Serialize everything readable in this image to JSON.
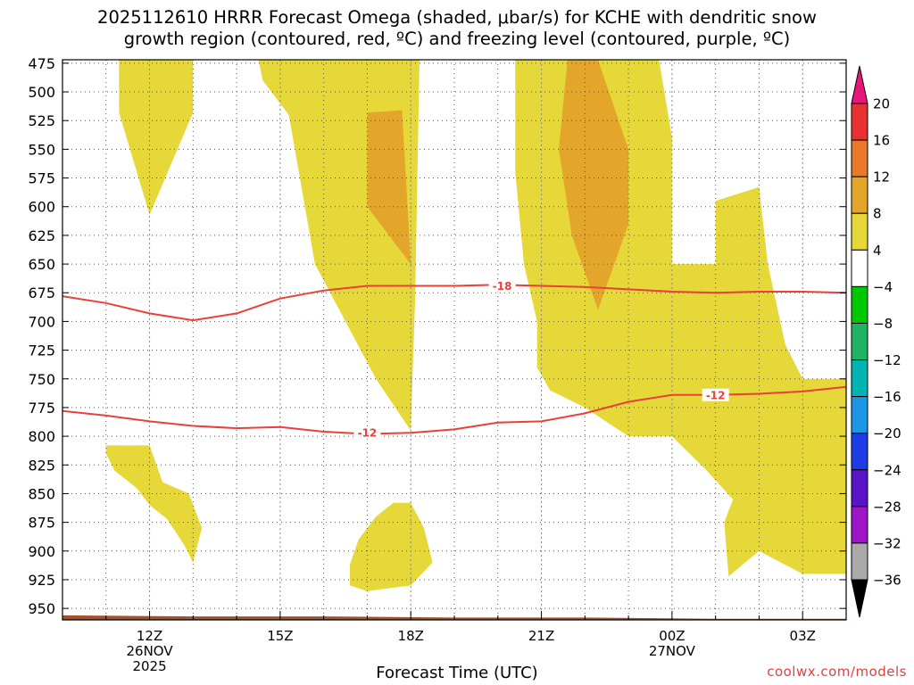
{
  "title_line1": "2025112610 HRRR Forecast Omega (shaded, μbar/s) for KCHE with dendritic snow",
  "title_line2": "growth region (contoured, red, ºC) and freezing level (contoured, purple, ºC)",
  "credit": "coolwx.com/models",
  "colors": {
    "omega_4_8": "#e6d838",
    "omega_8_12": "#e4a62a",
    "dgz_contour": "#e8403a",
    "terrain": "#a0522d"
  },
  "chart_data": {
    "type": "heatmap",
    "title": "2025112610 HRRR Forecast Omega (shaded, μbar/s) for KCHE with dendritic snow growth region (contoured, red, ºC) and freezing level (contoured, purple, ºC)",
    "xlabel": "Forecast Time (UTC)",
    "ylabel": "",
    "x_unit": "forecast hour from 2025-11-26 10Z",
    "xlim": [
      0,
      18
    ],
    "ylim": [
      960,
      472
    ],
    "y_axis": "pressure (mb), top = 472",
    "grid": true,
    "yticks": [
      475,
      500,
      525,
      550,
      575,
      600,
      625,
      650,
      675,
      700,
      725,
      750,
      775,
      800,
      825,
      850,
      875,
      900,
      925,
      950
    ],
    "xticks": [
      {
        "x": 2,
        "label": "12Z",
        "sub1": "26NOV",
        "sub2": "2025"
      },
      {
        "x": 5,
        "label": "15Z",
        "sub1": "",
        "sub2": ""
      },
      {
        "x": 8,
        "label": "18Z",
        "sub1": "",
        "sub2": ""
      },
      {
        "x": 11,
        "label": "21Z",
        "sub1": "",
        "sub2": ""
      },
      {
        "x": 14,
        "label": "00Z",
        "sub1": "27NOV",
        "sub2": ""
      },
      {
        "x": 17,
        "label": "03Z",
        "sub1": "",
        "sub2": ""
      }
    ],
    "colorbar": {
      "levels": [
        "20",
        "16",
        "12",
        "8",
        "4",
        "−4",
        "−8",
        "−12",
        "−16",
        "−20",
        "−24",
        "−28",
        "−32",
        "−36"
      ],
      "colors": [
        "#e8167a",
        "#e83232",
        "#e8782a",
        "#e4a62a",
        "#e6d838",
        "#ffffff",
        "#00c800",
        "#1eb464",
        "#00b4b4",
        "#1e96e6",
        "#1e3ce6",
        "#5a14c8",
        "#a014c8",
        "#aaaaaa",
        "#000000"
      ]
    },
    "shaded_regions": [
      {
        "level": "4-8",
        "polygon": [
          [
            1.3,
            472
          ],
          [
            3.0,
            472
          ],
          [
            3.0,
            518
          ],
          [
            2.0,
            607
          ],
          [
            1.3,
            518
          ]
        ]
      },
      {
        "level": "4-8",
        "polygon": [
          [
            4.5,
            472
          ],
          [
            8.2,
            472
          ],
          [
            8.1,
            680
          ],
          [
            8.0,
            795
          ],
          [
            7.2,
            750
          ],
          [
            5.8,
            650
          ],
          [
            5.2,
            520
          ],
          [
            4.6,
            490
          ]
        ]
      },
      {
        "level": "8-12",
        "polygon": [
          [
            7.0,
            518
          ],
          [
            7.8,
            516
          ],
          [
            8.0,
            650
          ],
          [
            7.0,
            600
          ]
        ]
      },
      {
        "level": "4-8",
        "polygon": [
          [
            10.4,
            472
          ],
          [
            13.7,
            472
          ],
          [
            14.0,
            540
          ],
          [
            14.0,
            650
          ],
          [
            15.0,
            650
          ],
          [
            15.0,
            595
          ],
          [
            16.0,
            583
          ],
          [
            16.2,
            650
          ],
          [
            16.6,
            720
          ],
          [
            17.0,
            750
          ],
          [
            18.0,
            750
          ],
          [
            18.0,
            920
          ],
          [
            17.0,
            920
          ],
          [
            16.0,
            900
          ],
          [
            15.3,
            922
          ],
          [
            15.2,
            875
          ],
          [
            15.4,
            855
          ],
          [
            14.8,
            830
          ],
          [
            14.0,
            800
          ],
          [
            13.0,
            800
          ],
          [
            12.6,
            790
          ],
          [
            12.0,
            775
          ],
          [
            11.2,
            760
          ],
          [
            10.9,
            740
          ],
          [
            10.9,
            700
          ],
          [
            10.6,
            650
          ],
          [
            10.4,
            570
          ]
        ]
      },
      {
        "level": "8-12",
        "polygon": [
          [
            11.6,
            472
          ],
          [
            12.3,
            472
          ],
          [
            13.0,
            550
          ],
          [
            13.0,
            615
          ],
          [
            12.3,
            690
          ],
          [
            11.7,
            625
          ],
          [
            11.4,
            550
          ]
        ]
      },
      {
        "level": "4-8",
        "polygon": [
          [
            1.0,
            808
          ],
          [
            2.0,
            808
          ],
          [
            2.3,
            840
          ],
          [
            2.9,
            850
          ],
          [
            3.2,
            880
          ],
          [
            3.0,
            910
          ],
          [
            2.8,
            895
          ],
          [
            2.4,
            872
          ],
          [
            2.0,
            860
          ],
          [
            1.7,
            845
          ],
          [
            1.2,
            830
          ],
          [
            1.0,
            815
          ]
        ]
      },
      {
        "level": "4-8",
        "polygon": [
          [
            7.6,
            858
          ],
          [
            8.0,
            858
          ],
          [
            8.3,
            880
          ],
          [
            8.5,
            910
          ],
          [
            8.0,
            930
          ],
          [
            7.0,
            935
          ],
          [
            6.6,
            930
          ],
          [
            6.6,
            912
          ],
          [
            6.8,
            890
          ],
          [
            7.2,
            870
          ]
        ]
      }
    ],
    "series": [
      {
        "name": "-18",
        "x": [
          0,
          1,
          2,
          3,
          4,
          5,
          6,
          7,
          8,
          9,
          10,
          11,
          12,
          13,
          14,
          15,
          16,
          17,
          18
        ],
        "values": [
          678,
          684,
          693,
          699,
          693,
          680,
          673,
          669,
          669,
          669,
          668,
          669,
          670,
          672,
          674,
          675,
          674,
          674,
          675
        ]
      },
      {
        "name": "-12",
        "x": [
          0,
          1,
          2,
          3,
          4,
          5,
          6,
          7,
          8,
          9,
          10,
          11,
          12,
          13,
          14,
          15,
          16,
          17,
          18
        ],
        "values": [
          778,
          782,
          787,
          791,
          793,
          792,
          796,
          798,
          797,
          794,
          788,
          787,
          780,
          770,
          764,
          764,
          763,
          761,
          757
        ]
      }
    ],
    "contour_labels": [
      {
        "text": "-18",
        "x": 10.1,
        "y": 669
      },
      {
        "text": "-12",
        "x": 7.0,
        "y": 797
      },
      {
        "text": "-12",
        "x": 15.0,
        "y": 764
      }
    ],
    "terrain": {
      "x": [
        0,
        3,
        6,
        9,
        12,
        15,
        18
      ],
      "values": [
        956,
        957,
        957,
        958,
        958,
        959,
        959
      ]
    }
  }
}
